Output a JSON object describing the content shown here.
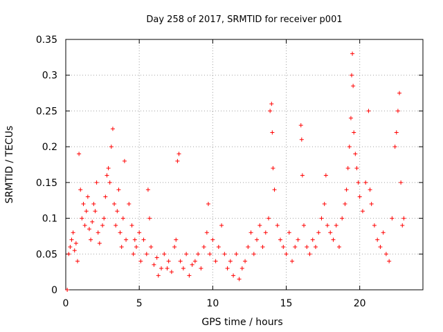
{
  "chart_data": {
    "type": "scatter",
    "title": "Day 258 of 2017, SRMTID for receiver p001",
    "xlabel": "GPS time / hours",
    "ylabel": "SRMTID / TECUs",
    "xlim": [
      0,
      24.3
    ],
    "ylim": [
      0,
      0.35
    ],
    "xticks": [
      0,
      5,
      10,
      15,
      20
    ],
    "xtick_labels": [
      "0",
      "5",
      "10",
      "15",
      "20"
    ],
    "yticks": [
      0,
      0.05,
      0.1,
      0.15,
      0.2,
      0.25,
      0.3,
      0.35
    ],
    "ytick_labels": [
      "0",
      "0.05",
      "0.1",
      "0.15",
      "0.2",
      "0.25",
      "0.3",
      "0.35"
    ],
    "grid": true,
    "marker": "+",
    "marker_color": "#ff0000",
    "series": [
      {
        "name": "SRMTID",
        "points": [
          [
            0.1,
            0.0
          ],
          [
            0.2,
            0.05
          ],
          [
            0.3,
            0.06
          ],
          [
            0.4,
            0.07
          ],
          [
            0.5,
            0.08
          ],
          [
            0.6,
            0.055
          ],
          [
            0.7,
            0.065
          ],
          [
            0.8,
            0.04
          ],
          [
            0.9,
            0.19
          ],
          [
            1.0,
            0.14
          ],
          [
            1.1,
            0.1
          ],
          [
            1.2,
            0.12
          ],
          [
            1.3,
            0.09
          ],
          [
            1.4,
            0.11
          ],
          [
            1.5,
            0.13
          ],
          [
            1.6,
            0.085
          ],
          [
            1.7,
            0.07
          ],
          [
            1.8,
            0.095
          ],
          [
            1.9,
            0.12
          ],
          [
            2.0,
            0.11
          ],
          [
            2.1,
            0.15
          ],
          [
            2.2,
            0.08
          ],
          [
            2.3,
            0.065
          ],
          [
            2.5,
            0.09
          ],
          [
            2.6,
            0.1
          ],
          [
            2.7,
            0.13
          ],
          [
            2.8,
            0.16
          ],
          [
            2.9,
            0.17
          ],
          [
            3.0,
            0.15
          ],
          [
            3.1,
            0.2
          ],
          [
            3.2,
            0.225
          ],
          [
            3.3,
            0.12
          ],
          [
            3.4,
            0.09
          ],
          [
            3.5,
            0.11
          ],
          [
            3.6,
            0.14
          ],
          [
            3.7,
            0.08
          ],
          [
            3.8,
            0.06
          ],
          [
            3.9,
            0.1
          ],
          [
            4.0,
            0.18
          ],
          [
            4.1,
            0.07
          ],
          [
            4.3,
            0.12
          ],
          [
            4.5,
            0.09
          ],
          [
            4.6,
            0.05
          ],
          [
            4.7,
            0.07
          ],
          [
            4.8,
            0.06
          ],
          [
            5.0,
            0.08
          ],
          [
            5.1,
            0.04
          ],
          [
            5.3,
            0.07
          ],
          [
            5.5,
            0.05
          ],
          [
            5.6,
            0.14
          ],
          [
            5.7,
            0.1
          ],
          [
            5.8,
            0.06
          ],
          [
            6.0,
            0.035
          ],
          [
            6.2,
            0.045
          ],
          [
            6.3,
            0.02
          ],
          [
            6.5,
            0.03
          ],
          [
            6.7,
            0.05
          ],
          [
            6.9,
            0.03
          ],
          [
            7.0,
            0.04
          ],
          [
            7.2,
            0.025
          ],
          [
            7.4,
            0.06
          ],
          [
            7.5,
            0.07
          ],
          [
            7.6,
            0.18
          ],
          [
            7.7,
            0.19
          ],
          [
            7.8,
            0.04
          ],
          [
            8.0,
            0.03
          ],
          [
            8.2,
            0.05
          ],
          [
            8.4,
            0.02
          ],
          [
            8.6,
            0.035
          ],
          [
            8.8,
            0.04
          ],
          [
            9.0,
            0.05
          ],
          [
            9.2,
            0.03
          ],
          [
            9.4,
            0.06
          ],
          [
            9.6,
            0.08
          ],
          [
            9.7,
            0.12
          ],
          [
            9.8,
            0.05
          ],
          [
            10.0,
            0.07
          ],
          [
            10.2,
            0.04
          ],
          [
            10.4,
            0.06
          ],
          [
            10.6,
            0.09
          ],
          [
            10.8,
            0.05
          ],
          [
            11.0,
            0.03
          ],
          [
            11.2,
            0.04
          ],
          [
            11.4,
            0.02
          ],
          [
            11.6,
            0.05
          ],
          [
            11.8,
            0.015
          ],
          [
            12.0,
            0.03
          ],
          [
            12.2,
            0.04
          ],
          [
            12.4,
            0.06
          ],
          [
            12.6,
            0.08
          ],
          [
            12.8,
            0.05
          ],
          [
            13.0,
            0.07
          ],
          [
            13.2,
            0.09
          ],
          [
            13.4,
            0.06
          ],
          [
            13.6,
            0.08
          ],
          [
            13.8,
            0.1
          ],
          [
            13.9,
            0.25
          ],
          [
            14.0,
            0.26
          ],
          [
            14.05,
            0.22
          ],
          [
            14.1,
            0.17
          ],
          [
            14.2,
            0.14
          ],
          [
            14.4,
            0.09
          ],
          [
            14.6,
            0.07
          ],
          [
            14.8,
            0.06
          ],
          [
            15.0,
            0.05
          ],
          [
            15.2,
            0.08
          ],
          [
            15.4,
            0.04
          ],
          [
            15.6,
            0.06
          ],
          [
            15.8,
            0.07
          ],
          [
            16.0,
            0.23
          ],
          [
            16.05,
            0.21
          ],
          [
            16.1,
            0.16
          ],
          [
            16.2,
            0.09
          ],
          [
            16.4,
            0.06
          ],
          [
            16.6,
            0.05
          ],
          [
            16.8,
            0.07
          ],
          [
            17.0,
            0.06
          ],
          [
            17.2,
            0.08
          ],
          [
            17.4,
            0.1
          ],
          [
            17.6,
            0.12
          ],
          [
            17.7,
            0.16
          ],
          [
            17.8,
            0.09
          ],
          [
            18.0,
            0.08
          ],
          [
            18.2,
            0.07
          ],
          [
            18.4,
            0.09
          ],
          [
            18.6,
            0.06
          ],
          [
            18.8,
            0.1
          ],
          [
            19.0,
            0.12
          ],
          [
            19.1,
            0.14
          ],
          [
            19.2,
            0.17
          ],
          [
            19.3,
            0.2
          ],
          [
            19.4,
            0.24
          ],
          [
            19.45,
            0.3
          ],
          [
            19.5,
            0.33
          ],
          [
            19.55,
            0.285
          ],
          [
            19.6,
            0.22
          ],
          [
            19.7,
            0.19
          ],
          [
            19.8,
            0.17
          ],
          [
            19.9,
            0.15
          ],
          [
            20.0,
            0.13
          ],
          [
            20.2,
            0.11
          ],
          [
            20.4,
            0.15
          ],
          [
            20.6,
            0.25
          ],
          [
            20.7,
            0.14
          ],
          [
            20.8,
            0.12
          ],
          [
            21.0,
            0.09
          ],
          [
            21.2,
            0.07
          ],
          [
            21.4,
            0.06
          ],
          [
            21.6,
            0.08
          ],
          [
            21.8,
            0.05
          ],
          [
            22.0,
            0.04
          ],
          [
            22.2,
            0.1
          ],
          [
            22.4,
            0.2
          ],
          [
            22.5,
            0.22
          ],
          [
            22.6,
            0.25
          ],
          [
            22.7,
            0.275
          ],
          [
            22.8,
            0.15
          ],
          [
            22.9,
            0.09
          ],
          [
            23.0,
            0.1
          ]
        ]
      }
    ]
  }
}
